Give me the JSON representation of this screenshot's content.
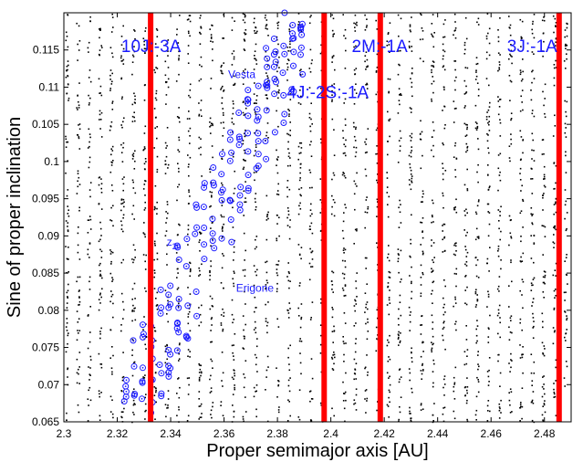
{
  "chart_data": {
    "type": "scatter",
    "title": "",
    "xlabel": "Proper semimajor axis [AU]",
    "ylabel": "Sine of proper inclination",
    "xlim": [
      2.3,
      2.49
    ],
    "ylim": [
      0.065,
      0.12
    ],
    "grid": false,
    "x_ticks": [
      "2.3",
      "2.32",
      "2.34",
      "2.36",
      "2.38",
      "2.4",
      "2.42",
      "2.44",
      "2.46",
      "2.48"
    ],
    "y_ticks": [
      "0.065",
      "0.07",
      "0.075",
      "0.08",
      "0.085",
      "0.09",
      "0.095",
      "0.1",
      "0.105",
      "0.11",
      "0.115"
    ],
    "background_points_color": "#000000",
    "family_points_color": "#1a1aff",
    "resonance_line_color": "#ff0000",
    "resonances": [
      {
        "label": "10J:-3A",
        "a": 2.3325,
        "label_a": 2.3215,
        "label_sini": 0.1147
      },
      {
        "label": "4J:-2S:-1A",
        "a": 2.3975,
        "label_a": 2.3835,
        "label_sini": 0.1085
      },
      {
        "label": "2M:-1A",
        "a": 2.4185,
        "label_a": 2.4078,
        "label_sini": 0.1147
      },
      {
        "label": "3J:-1A",
        "a": 2.4855,
        "label_a": 2.466,
        "label_sini": 0.1147
      }
    ],
    "annotations": [
      {
        "text": "Vesta",
        "a": 2.3615,
        "sini": 0.1112
      },
      {
        "text": "z2",
        "a": 2.3385,
        "sini": 0.0887
      },
      {
        "text": "Erigone",
        "a": 2.3645,
        "sini": 0.0825
      }
    ]
  }
}
